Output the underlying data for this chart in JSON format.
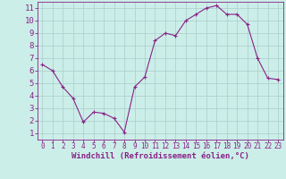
{
  "x": [
    0,
    1,
    2,
    3,
    4,
    5,
    6,
    7,
    8,
    9,
    10,
    11,
    12,
    13,
    14,
    15,
    16,
    17,
    18,
    19,
    20,
    21,
    22,
    23
  ],
  "y": [
    6.5,
    6.0,
    4.7,
    3.8,
    1.9,
    2.7,
    2.6,
    2.2,
    1.1,
    4.7,
    5.5,
    8.4,
    9.0,
    8.8,
    10.0,
    10.5,
    11.0,
    11.2,
    10.5,
    10.5,
    9.7,
    7.0,
    5.4,
    5.3
  ],
  "xlim": [
    -0.5,
    23.5
  ],
  "ylim": [
    0.5,
    11.5
  ],
  "yticks": [
    1,
    2,
    3,
    4,
    5,
    6,
    7,
    8,
    9,
    10,
    11
  ],
  "xticks": [
    0,
    1,
    2,
    3,
    4,
    5,
    6,
    7,
    8,
    9,
    10,
    11,
    12,
    13,
    14,
    15,
    16,
    17,
    18,
    19,
    20,
    21,
    22,
    23
  ],
  "xlabel": "Windchill (Refroidissement éolien,°C)",
  "line_color": "#882288",
  "marker": "+",
  "bg_color": "#cceee8",
  "grid_color": "#aacccc",
  "text_color": "#882288",
  "tick_color": "#882288",
  "spine_color": "#882288",
  "xlabel_fontsize": 6.5,
  "ytick_fontsize": 6.5,
  "xtick_fontsize": 5.5
}
